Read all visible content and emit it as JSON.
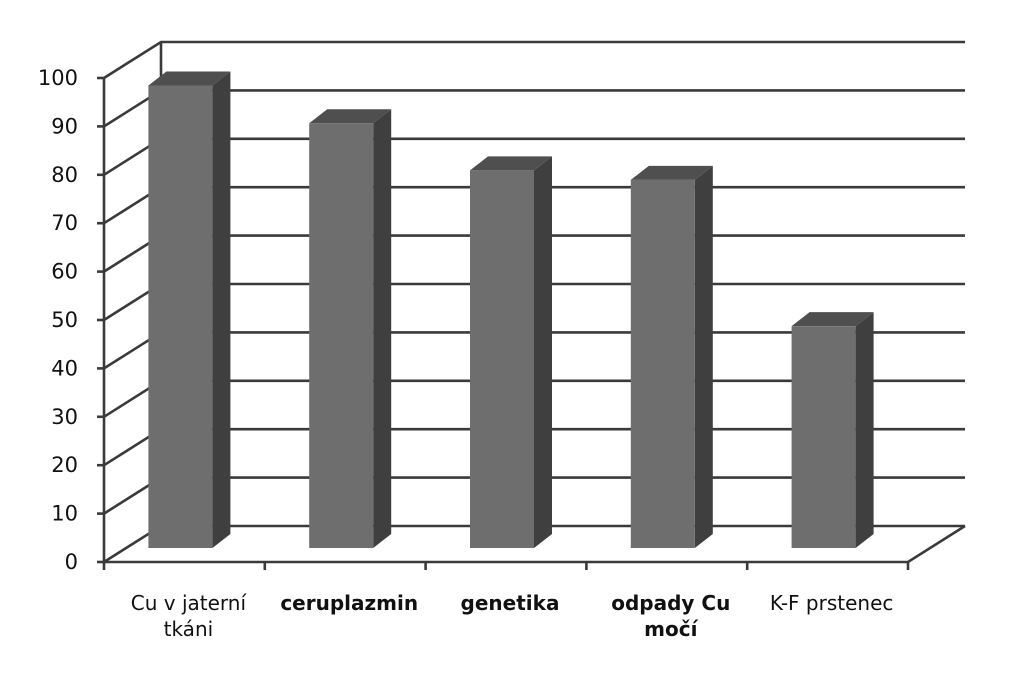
{
  "chart_data": {
    "type": "bar",
    "style": "3d-column",
    "categories": [
      [
        "Cu v jaterní",
        "tkáni"
      ],
      [
        "ceruplazmin"
      ],
      [
        "genetika"
      ],
      [
        "odpady Cu",
        "močí"
      ],
      [
        "K-F prstenec"
      ]
    ],
    "category_bold": [
      false,
      true,
      true,
      true,
      false
    ],
    "values": [
      98,
      90,
      80,
      78,
      47
    ],
    "yticks": [
      0,
      10,
      20,
      30,
      40,
      50,
      60,
      70,
      80,
      90,
      100
    ],
    "ylim": [
      0,
      100
    ],
    "title": "",
    "xlabel": "",
    "ylabel": "",
    "grid": true,
    "colors": {
      "bar_front": "#6e6e6e",
      "bar_side": "#3f3f3f",
      "bar_top": "#4f4f4f",
      "grid": "#3a3a3a"
    }
  }
}
